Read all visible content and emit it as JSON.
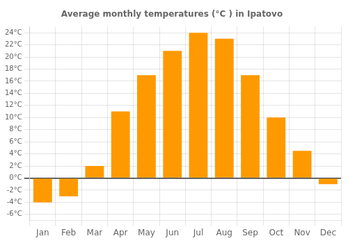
{
  "chart_data": {
    "type": "bar",
    "title": "Average monthly temperatures (°C ) in Ipatovo",
    "categories": [
      "Jan",
      "Feb",
      "Mar",
      "Apr",
      "May",
      "Jun",
      "Jul",
      "Aug",
      "Sep",
      "Oct",
      "Nov",
      "Dec"
    ],
    "values": [
      -4,
      -3,
      2,
      11,
      17,
      21,
      24,
      23,
      17,
      10,
      4.5,
      -1
    ],
    "color": "#FF9900",
    "ylim": [
      -7,
      25
    ],
    "yticks": [
      {
        "value": -6,
        "label": "-6°C"
      },
      {
        "value": -4,
        "label": "-4°C"
      },
      {
        "value": -2,
        "label": "-2°C"
      },
      {
        "value": 0,
        "label": "0°C"
      },
      {
        "value": 2,
        "label": "2°C"
      },
      {
        "value": 4,
        "label": "4°C"
      },
      {
        "value": 6,
        "label": "6°C"
      },
      {
        "value": 8,
        "label": "8°C"
      },
      {
        "value": 10,
        "label": "10°C"
      },
      {
        "value": 12,
        "label": "12°C"
      },
      {
        "value": 14,
        "label": "14°C"
      },
      {
        "value": 16,
        "label": "16°C"
      },
      {
        "value": 18,
        "label": "18°C"
      },
      {
        "value": 20,
        "label": "20°C"
      },
      {
        "value": 22,
        "label": "22°C"
      },
      {
        "value": 24,
        "label": "24°C"
      }
    ],
    "grid": true
  }
}
